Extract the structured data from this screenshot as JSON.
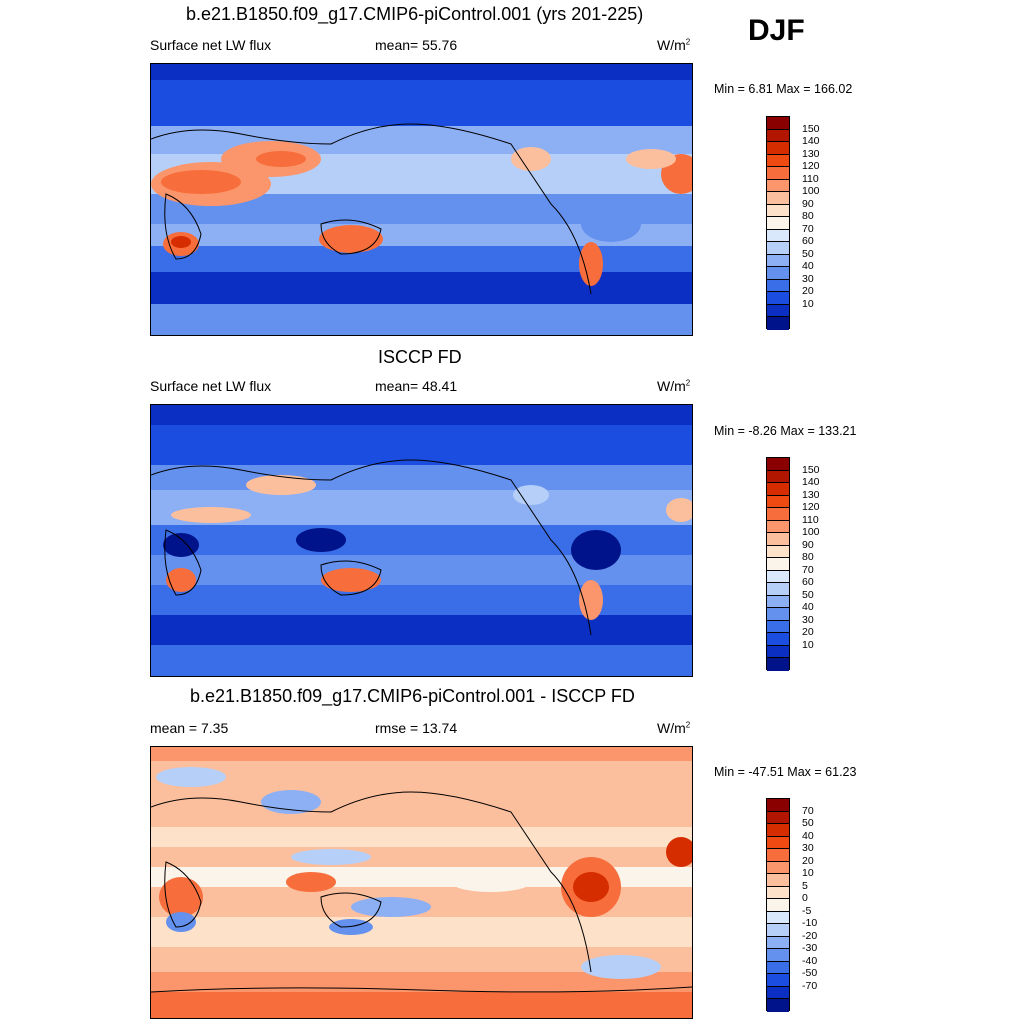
{
  "season": "DJF",
  "units_base": "W/m",
  "units_sup": "2",
  "panels": [
    {
      "title": "b.e21.B1850.f09_g17.CMIP6-piControl.001 (yrs 201-225)",
      "variable": "Surface net LW flux",
      "stat": "mean=  55.76",
      "minmax": "Min =   6.81 Max = 166.02",
      "type": "absolute"
    },
    {
      "title": "ISCCP FD",
      "variable": "Surface net LW flux",
      "stat": "mean=  48.41",
      "minmax": "Min =  -8.26 Max = 133.21",
      "type": "absolute"
    },
    {
      "title": "b.e21.B1850.f09_g17.CMIP6-piControl.001 - ISCCP FD",
      "variable": "mean =   7.35",
      "stat": "rmse =  13.74",
      "minmax": "Min = -47.51 Max =  61.23",
      "type": "difference"
    }
  ],
  "colorbars": {
    "absolute": {
      "labels": [
        "150",
        "140",
        "130",
        "120",
        "110",
        "100",
        "90",
        "80",
        "70",
        "60",
        "50",
        "40",
        "30",
        "20",
        "10"
      ],
      "colors": [
        "#8a0000",
        "#b31600",
        "#d52d00",
        "#ee4a12",
        "#f76e3c",
        "#fb966c",
        "#fcbf9d",
        "#fde1c8",
        "#fbf4ea",
        "#d9e8fb",
        "#b5cff8",
        "#8db0f4",
        "#6490ee",
        "#3a6ee8",
        "#1b4ee0",
        "#0b2fc2",
        "#00138a"
      ]
    },
    "difference": {
      "labels": [
        "70",
        "50",
        "40",
        "30",
        "20",
        "10",
        "5",
        "0",
        "-5",
        "-10",
        "-20",
        "-30",
        "-40",
        "-50",
        "-70"
      ],
      "colors": [
        "#8a0000",
        "#b31600",
        "#d52d00",
        "#ee4a12",
        "#f76e3c",
        "#fb966c",
        "#fcbf9d",
        "#fde1c8",
        "#fbf4ea",
        "#d9e8fb",
        "#b5cff8",
        "#8db0f4",
        "#6490ee",
        "#3a6ee8",
        "#1b4ee0",
        "#0b2fc2",
        "#00138a"
      ]
    }
  },
  "map_palettes": {
    "p1": {
      "base": "#1b4ee0",
      "bands": [
        "#0b2fc2",
        "#3a6ee8",
        "#6490ee",
        "#8db0f4",
        "#b5cff8"
      ],
      "hot": [
        "#f76e3c",
        "#fb966c",
        "#fcbf9d",
        "#d52d00"
      ]
    },
    "p2": {
      "base": "#1b4ee0",
      "bands": [
        "#0b2fc2",
        "#3a6ee8",
        "#6490ee",
        "#8db0f4",
        "#00138a"
      ],
      "hot": [
        "#f76e3c",
        "#fb966c",
        "#fcbf9d",
        "#d52d00"
      ]
    },
    "p3": {
      "base": "#fcbf9d",
      "bands": [
        "#fb966c",
        "#fde1c8",
        "#f76e3c",
        "#fbf4ea",
        "#b5cff8"
      ],
      "hot": [
        "#d52d00",
        "#ee4a12",
        "#8db0f4",
        "#6490ee"
      ]
    }
  }
}
